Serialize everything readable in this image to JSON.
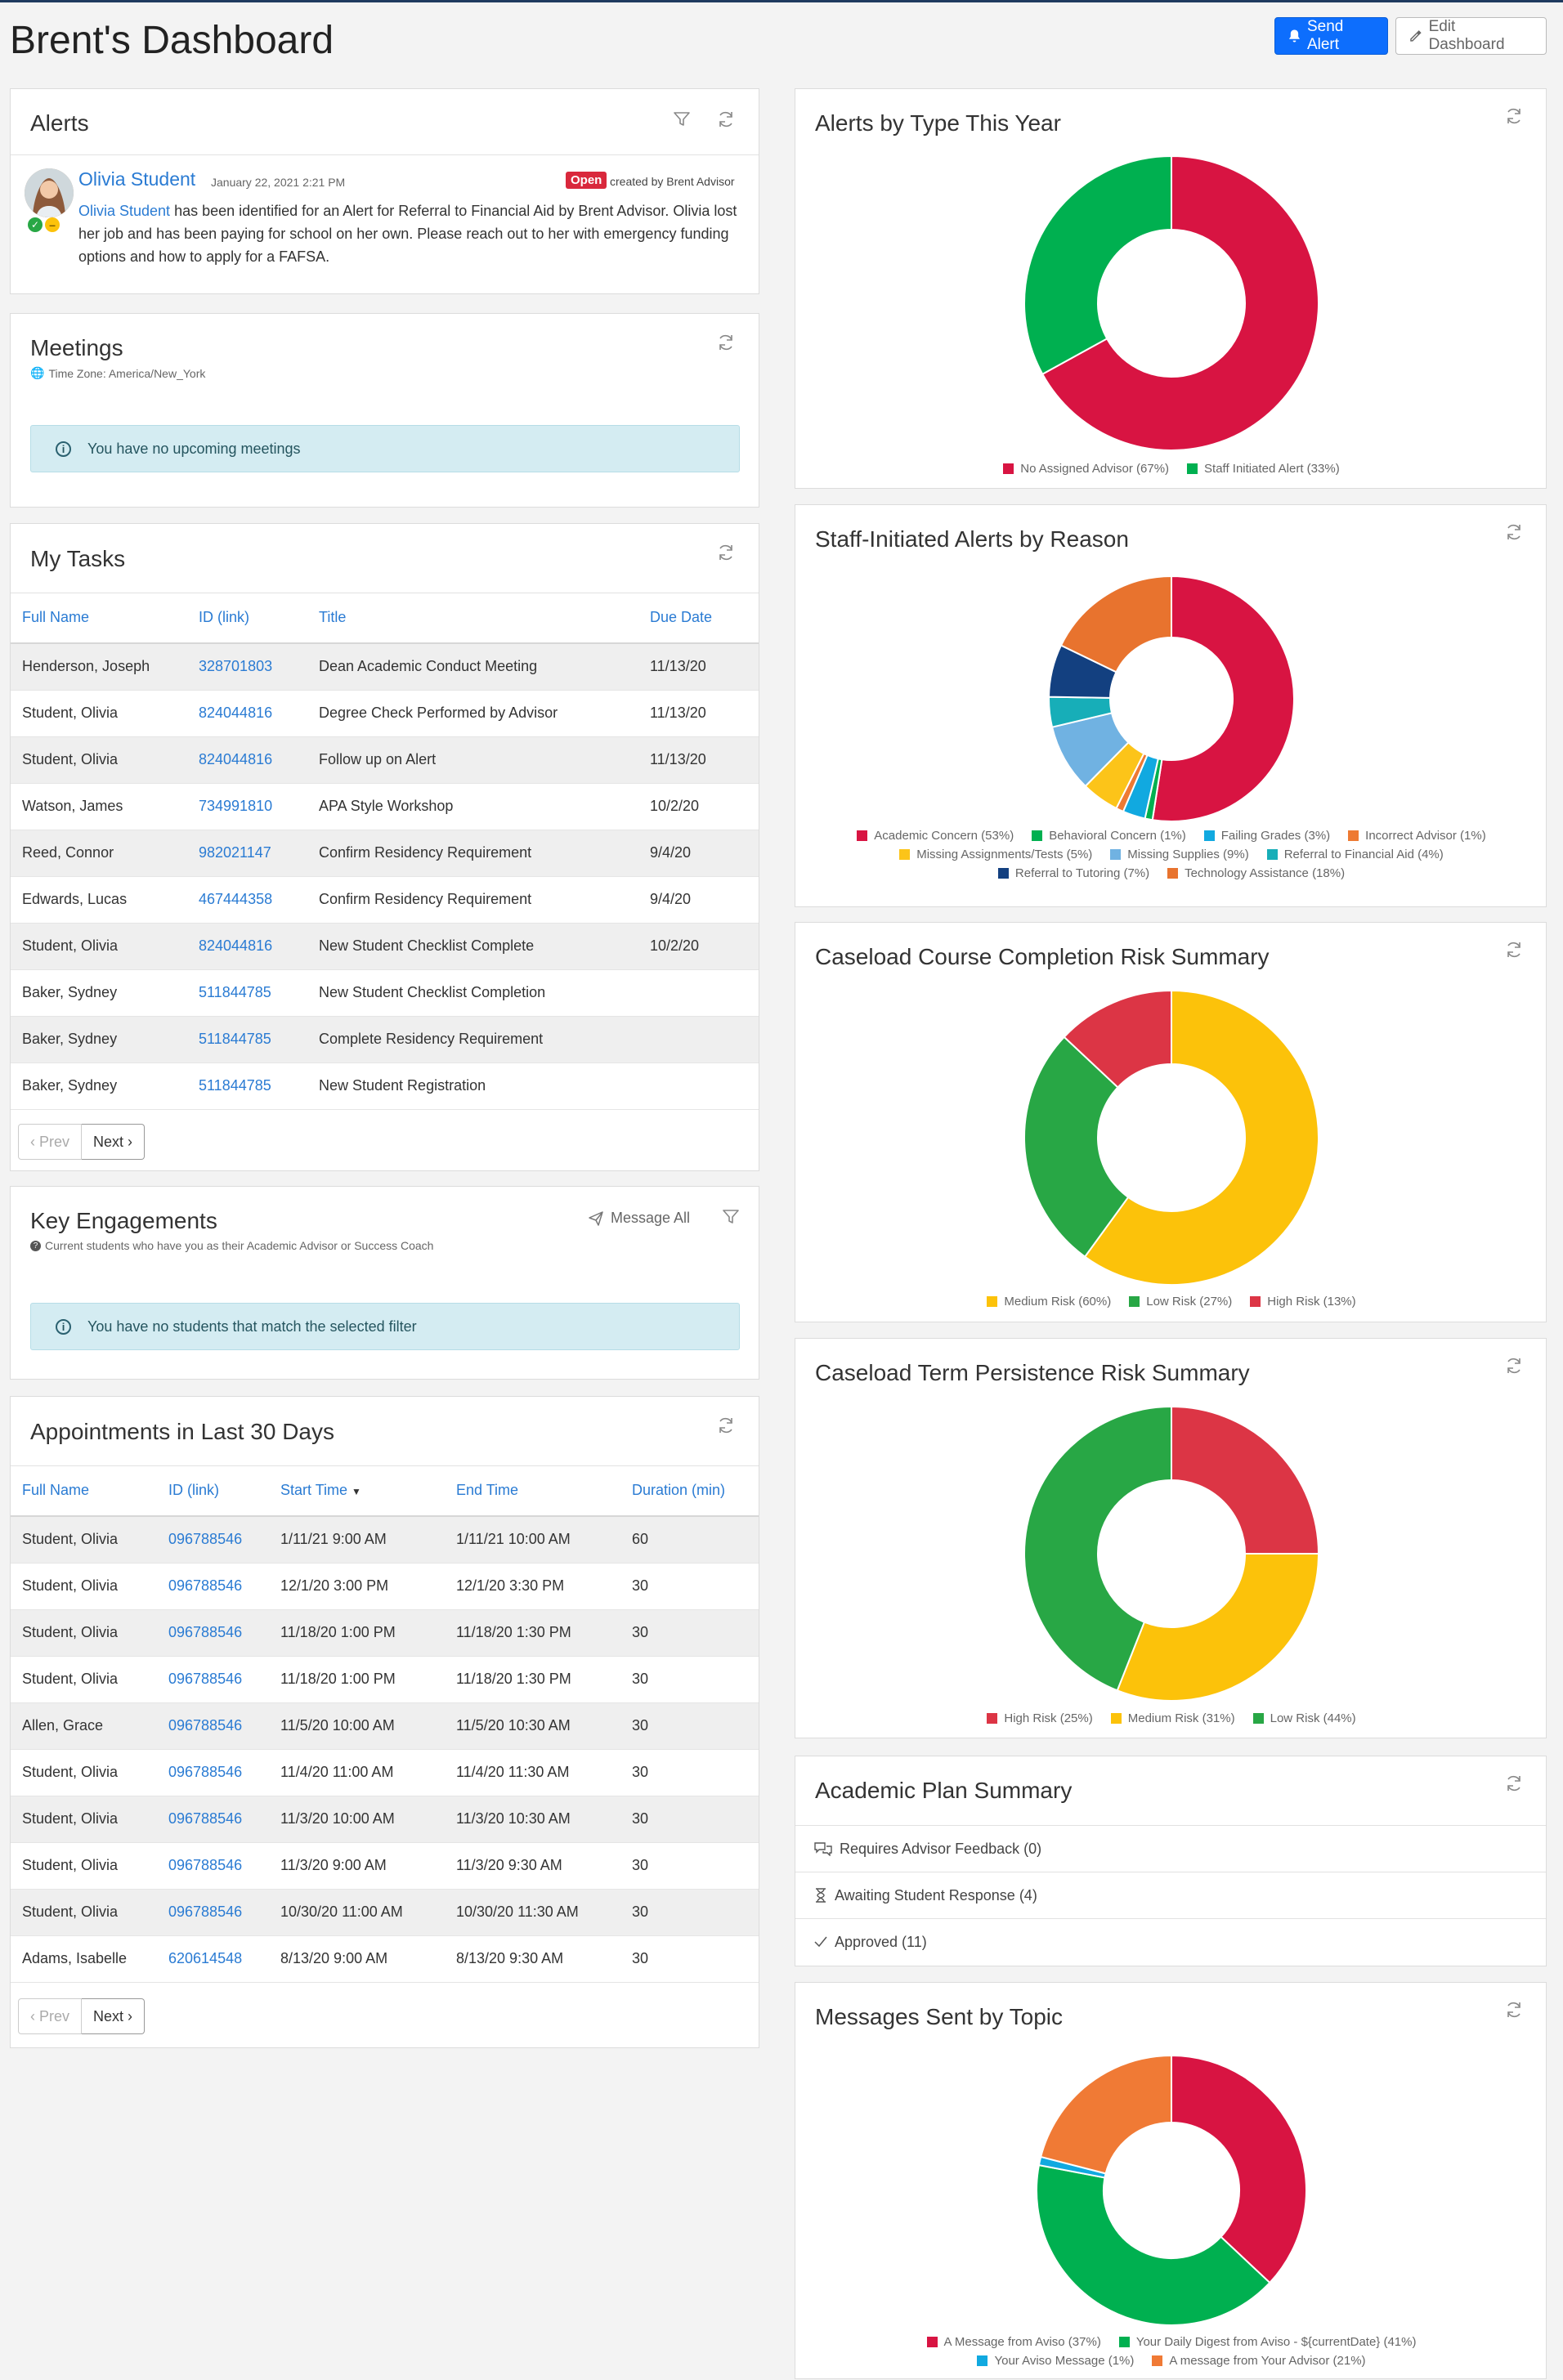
{
  "page_title": "Brent's Dashboard",
  "header": {
    "send_alert": "Send Alert",
    "edit_dashboard": "Edit Dashboard"
  },
  "alerts": {
    "title": "Alerts",
    "item": {
      "name": "Olivia Student",
      "date": "January 22, 2021 2:21 PM",
      "status": "Open",
      "created_by": "created by Brent Advisor",
      "body_link": "Olivia Student",
      "body_text": " has been identified for an Alert for Referral to Financial Aid by Brent Advisor. Olivia lost her job and has been paying for school on her own. Please reach out to her with emergency funding options and how to apply for a FAFSA."
    }
  },
  "meetings": {
    "title": "Meetings",
    "timezone": "Time Zone: America/New_York",
    "empty": "You have no upcoming meetings"
  },
  "tasks": {
    "title": "My Tasks",
    "columns": [
      "Full Name",
      "ID (link)",
      "Title",
      "Due Date"
    ],
    "rows": [
      [
        "Henderson, Joseph",
        "328701803",
        "Dean Academic Conduct Meeting",
        "11/13/20"
      ],
      [
        "Student, Olivia",
        "824044816",
        "Degree Check Performed by Advisor",
        "11/13/20"
      ],
      [
        "Student, Olivia",
        "824044816",
        "Follow up on Alert",
        "11/13/20"
      ],
      [
        "Watson, James",
        "734991810",
        "APA Style Workshop",
        "10/2/20"
      ],
      [
        "Reed, Connor",
        "982021147",
        "Confirm Residency Requirement",
        "9/4/20"
      ],
      [
        "Edwards, Lucas",
        "467444358",
        "Confirm Residency Requirement",
        "9/4/20"
      ],
      [
        "Student, Olivia",
        "824044816",
        "New Student Checklist Complete",
        "10/2/20"
      ],
      [
        "Baker, Sydney",
        "511844785",
        "New Student Checklist Completion",
        ""
      ],
      [
        "Baker, Sydney",
        "511844785",
        "Complete Residency Requirement",
        ""
      ],
      [
        "Baker, Sydney",
        "511844785",
        "New Student Registration",
        ""
      ]
    ],
    "prev": "Prev",
    "next": "Next"
  },
  "engagements": {
    "title": "Key Engagements",
    "subtitle": "Current students who have you as their Academic Advisor or Success Coach",
    "message_all": "Message All",
    "empty": "You have no students that match the selected filter"
  },
  "appointments": {
    "title": "Appointments in Last 30 Days",
    "columns": [
      "Full Name",
      "ID (link)",
      "Start Time",
      "End Time",
      "Duration (min)"
    ],
    "rows": [
      [
        "Student, Olivia",
        "096788546",
        "1/11/21 9:00 AM",
        "1/11/21 10:00 AM",
        "60"
      ],
      [
        "Student, Olivia",
        "096788546",
        "12/1/20 3:00 PM",
        "12/1/20 3:30 PM",
        "30"
      ],
      [
        "Student, Olivia",
        "096788546",
        "11/18/20 1:00 PM",
        "11/18/20 1:30 PM",
        "30"
      ],
      [
        "Student, Olivia",
        "096788546",
        "11/18/20 1:00 PM",
        "11/18/20 1:30 PM",
        "30"
      ],
      [
        "Allen, Grace",
        "096788546",
        "11/5/20 10:00 AM",
        "11/5/20 10:30 AM",
        "30"
      ],
      [
        "Student, Olivia",
        "096788546",
        "11/4/20 11:00 AM",
        "11/4/20 11:30 AM",
        "30"
      ],
      [
        "Student, Olivia",
        "096788546",
        "11/3/20 10:00 AM",
        "11/3/20 10:30 AM",
        "30"
      ],
      [
        "Student, Olivia",
        "096788546",
        "11/3/20 9:00 AM",
        "11/3/20 9:30 AM",
        "30"
      ],
      [
        "Student, Olivia",
        "096788546",
        "10/30/20 11:00 AM",
        "10/30/20 11:30 AM",
        "30"
      ],
      [
        "Adams, Isabelle",
        "620614548",
        "8/13/20 9:00 AM",
        "8/13/20 9:30 AM",
        "30"
      ]
    ],
    "prev": "Prev",
    "next": "Next"
  },
  "academic_plan": {
    "title": "Academic Plan Summary",
    "items": [
      "Requires Advisor Feedback (0)",
      "Awaiting Student Response (4)",
      "Approved (11)"
    ]
  },
  "chart_data": [
    {
      "type": "pie",
      "title": "Alerts by Type This Year",
      "slices": [
        {
          "label": "No Assigned Advisor (67%)",
          "value": 67,
          "color": "#d81442"
        },
        {
          "label": "Staff Initiated Alert (33%)",
          "value": 33,
          "color": "#00b050"
        }
      ]
    },
    {
      "type": "pie",
      "title": "Staff-Initiated Alerts by Reason",
      "slices": [
        {
          "label": "Academic Concern (53%)",
          "value": 53,
          "color": "#d81442"
        },
        {
          "label": "Behavioral Concern (1%)",
          "value": 1,
          "color": "#00b050"
        },
        {
          "label": "Failing Grades (3%)",
          "value": 3,
          "color": "#11a9e0"
        },
        {
          "label": "Incorrect Advisor (1%)",
          "value": 1,
          "color": "#ee7a33"
        },
        {
          "label": "Missing Assignments/Tests (5%)",
          "value": 5,
          "color": "#fcc419"
        },
        {
          "label": "Missing Supplies (9%)",
          "value": 9,
          "color": "#70b2e2"
        },
        {
          "label": "Referral to Financial Aid (4%)",
          "value": 4,
          "color": "#17aeb8"
        },
        {
          "label": "Referral to Tutoring (7%)",
          "value": 7,
          "color": "#134080"
        },
        {
          "label": "Technology Assistance (18%)",
          "value": 18,
          "color": "#e8732e"
        }
      ]
    },
    {
      "type": "pie",
      "title": "Caseload Course Completion Risk Summary",
      "slices": [
        {
          "label": "Medium Risk (60%)",
          "value": 60,
          "color": "#fcc20a"
        },
        {
          "label": "Low Risk (27%)",
          "value": 27,
          "color": "#28a745"
        },
        {
          "label": "High Risk (13%)",
          "value": 13,
          "color": "#dc3545"
        }
      ]
    },
    {
      "type": "pie",
      "title": "Caseload Term Persistence Risk Summary",
      "slices": [
        {
          "label": "High Risk (25%)",
          "value": 25,
          "color": "#dc3545"
        },
        {
          "label": "Medium Risk (31%)",
          "value": 31,
          "color": "#fcc20a"
        },
        {
          "label": "Low Risk (44%)",
          "value": 44,
          "color": "#28a745"
        }
      ]
    },
    {
      "type": "pie",
      "title": "Messages Sent by Topic",
      "slices": [
        {
          "label": "A Message from Aviso (37%)",
          "value": 37,
          "color": "#d81442"
        },
        {
          "label": "Your Daily Digest from Aviso - ${currentDate} (41%)",
          "value": 41,
          "color": "#00b050"
        },
        {
          "label": "Your Aviso Message (1%)",
          "value": 1,
          "color": "#11a9e0"
        },
        {
          "label": "A message from Your Advisor (21%)",
          "value": 21,
          "color": "#f07a35"
        }
      ]
    }
  ]
}
